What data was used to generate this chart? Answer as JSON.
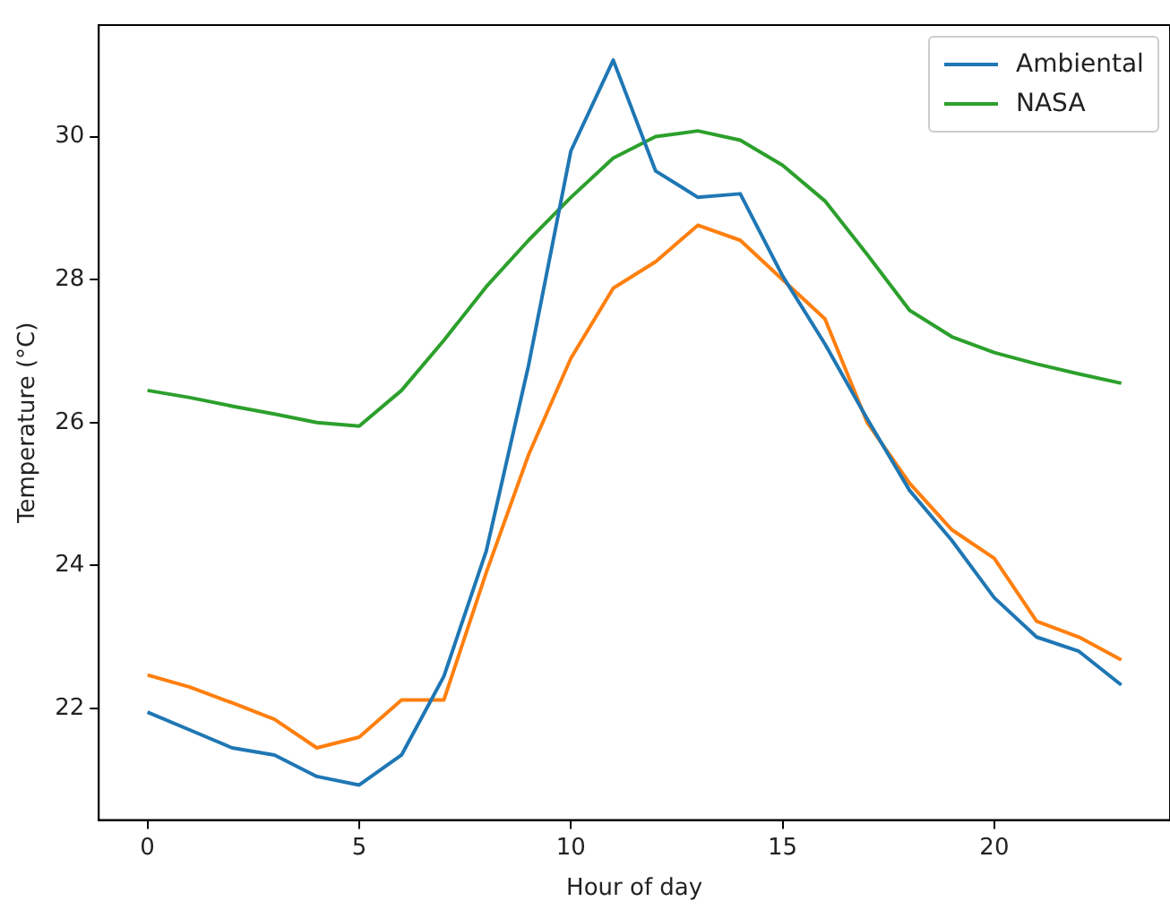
{
  "chart_data": {
    "type": "line",
    "x": [
      0,
      1,
      2,
      3,
      4,
      5,
      6,
      7,
      8,
      9,
      10,
      11,
      12,
      13,
      14,
      15,
      16,
      17,
      18,
      19,
      20,
      21,
      22,
      23
    ],
    "series": [
      {
        "name": "Ambiental",
        "color": "#1f77b4",
        "values": [
          21.95,
          21.7,
          21.45,
          21.35,
          21.05,
          20.93,
          21.35,
          22.45,
          24.2,
          26.8,
          29.8,
          31.07,
          29.52,
          29.15,
          29.2,
          28.05,
          27.1,
          26.05,
          25.05,
          24.35,
          23.55,
          23.0,
          22.8,
          22.33
        ]
      },
      {
        "color": "#ff7f0e",
        "values": [
          22.47,
          22.3,
          22.08,
          21.85,
          21.45,
          21.6,
          22.12,
          22.12,
          23.9,
          25.55,
          26.9,
          27.88,
          28.25,
          28.76,
          28.55,
          28.0,
          27.45,
          26.0,
          25.15,
          24.5,
          24.1,
          23.22,
          23.0,
          22.68
        ]
      },
      {
        "name": "NASA",
        "color": "#2ca02c",
        "values": [
          26.45,
          26.35,
          26.23,
          26.12,
          26.0,
          25.95,
          26.45,
          27.15,
          27.9,
          28.55,
          29.15,
          29.7,
          30.0,
          30.08,
          29.95,
          29.6,
          29.1,
          28.35,
          27.57,
          27.2,
          26.98,
          26.82,
          26.68,
          26.55
        ]
      }
    ],
    "xlabel": "Hour of day",
    "ylabel": "Temperature (°C)",
    "xlim": [
      -1.15,
      24.15
    ],
    "xticks": [
      0,
      5,
      10,
      15,
      20
    ],
    "ylim": [
      20.44,
      31.56
    ],
    "yticks": [
      22,
      24,
      26,
      28,
      30
    ],
    "grid": false,
    "legend": "top right",
    "marker": "none",
    "line_style": "solid"
  }
}
